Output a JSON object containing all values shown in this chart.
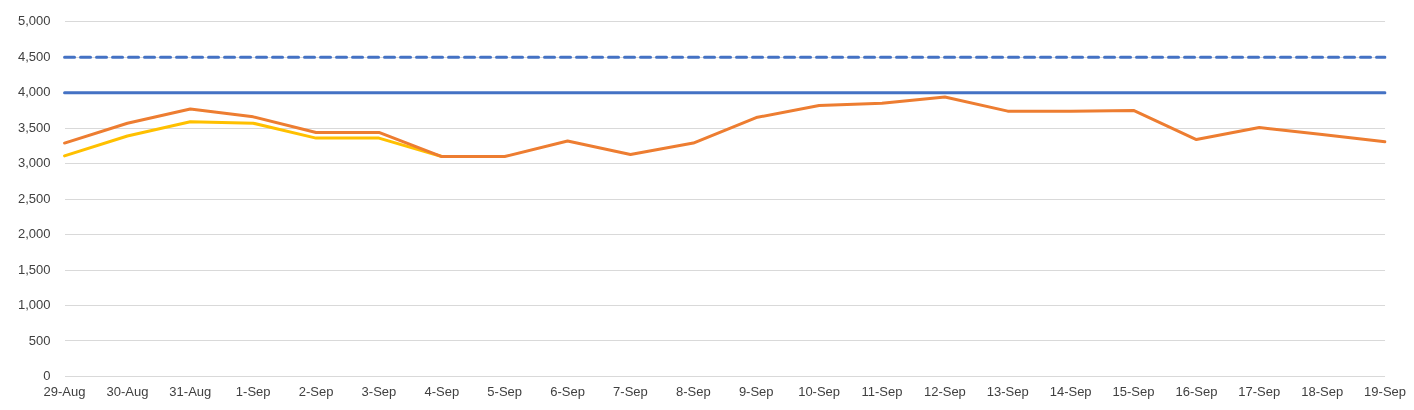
{
  "chart_data": {
    "type": "line",
    "categories": [
      "29-Aug",
      "30-Aug",
      "31-Aug",
      "1-Sep",
      "2-Sep",
      "3-Sep",
      "4-Sep",
      "5-Sep",
      "6-Sep",
      "7-Sep",
      "8-Sep",
      "9-Sep",
      "10-Sep",
      "11-Sep",
      "12-Sep",
      "13-Sep",
      "14-Sep",
      "15-Sep",
      "16-Sep",
      "17-Sep",
      "18-Sep",
      "19-Sep"
    ],
    "series": [
      {
        "color": "#4472c4",
        "line_style": "solid",
        "values": [
          4000,
          4000,
          4000,
          4000,
          4000,
          4000,
          4000,
          4000,
          4000,
          4000,
          4000,
          4000,
          4000,
          4000,
          4000,
          4000,
          4000,
          4000,
          4000,
          4000,
          4000,
          4000
        ]
      },
      {
        "color": "#4472c4",
        "line_style": "dashed",
        "values": [
          4500,
          4500,
          4500,
          4500,
          4500,
          4500,
          4500,
          4500,
          4500,
          4500,
          4500,
          4500,
          4500,
          4500,
          4500,
          4500,
          4500,
          4500,
          4500,
          4500,
          4500,
          4500
        ]
      },
      {
        "color": "#ffc000",
        "line_style": "solid",
        "values": [
          3110,
          3390,
          3590,
          3570,
          3360,
          3360,
          3100,
          null,
          null,
          null,
          null,
          null,
          null,
          null,
          null,
          null,
          null,
          null,
          null,
          null,
          null,
          null
        ]
      },
      {
        "color": "#ed7d31",
        "line_style": "solid",
        "values": [
          3290,
          3570,
          3770,
          3660,
          3440,
          3440,
          3100,
          3100,
          3320,
          3130,
          3290,
          3650,
          3820,
          3850,
          3940,
          3740,
          3740,
          3750,
          3340,
          3510,
          3410,
          3310
        ]
      }
    ],
    "ylim": [
      0,
      5000
    ],
    "yticks": [
      0,
      500,
      {
        "value": 1000,
        "label": "1,000"
      },
      {
        "value": 1500,
        "label": "1,500"
      },
      {
        "value": 2000,
        "label": "2,000"
      },
      {
        "value": 2500,
        "label": "2,500"
      },
      {
        "value": 3000,
        "label": "3,000"
      },
      {
        "value": 3500,
        "label": "3,500"
      },
      {
        "value": 4000,
        "label": "4,000"
      },
      {
        "value": 4500,
        "label": "4,500"
      },
      {
        "value": 5000,
        "label": "5,000"
      }
    ],
    "grid": "y",
    "legend": false,
    "marker": "none"
  }
}
